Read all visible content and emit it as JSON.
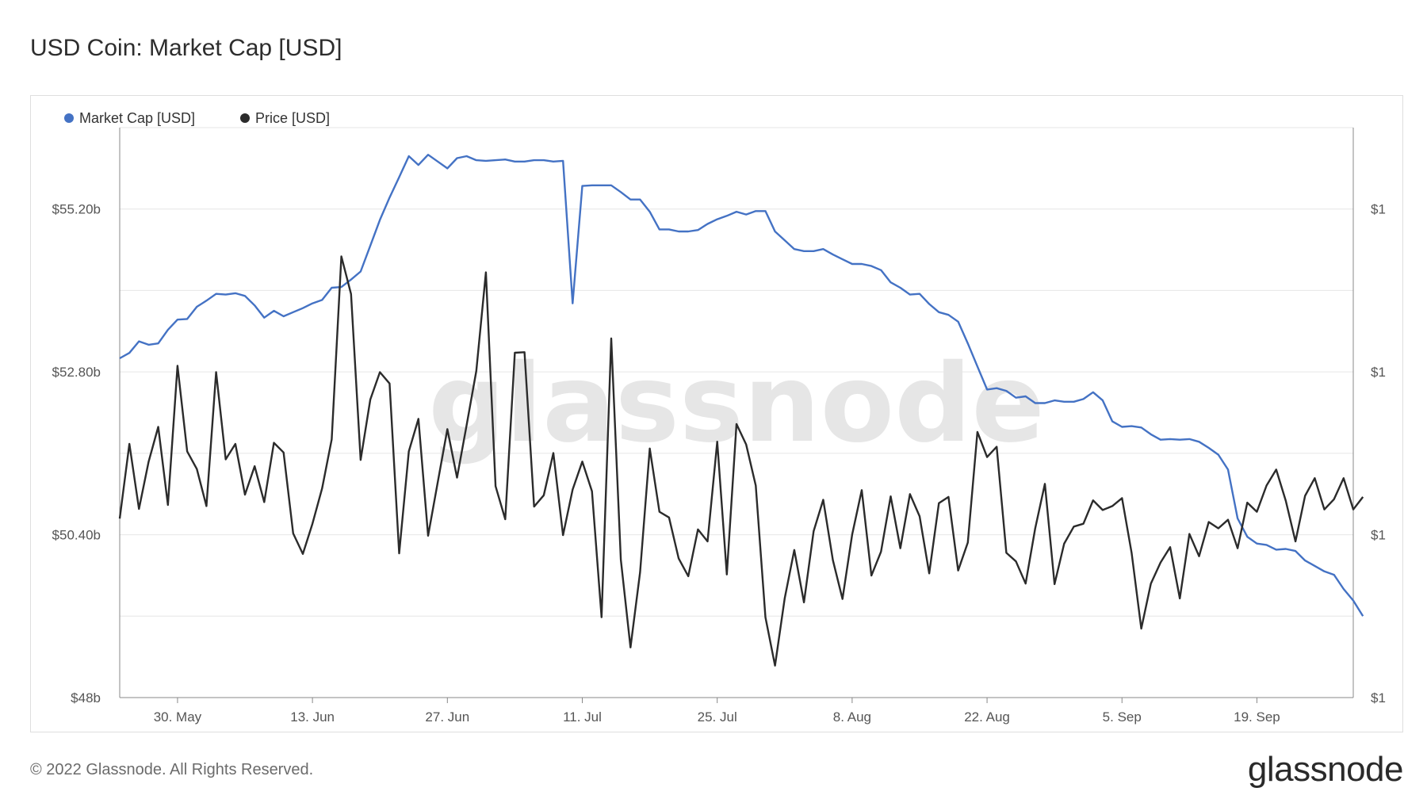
{
  "title": "USD Coin: Market Cap [USD]",
  "footer": {
    "copyright": "© 2022 Glassnode. All Rights Reserved.",
    "brand": "glassnode"
  },
  "watermark": "glassnode",
  "colors": {
    "market_cap": "#4472c4",
    "price": "#2b2b2b",
    "grid": "#e6e6e6",
    "axis": "#888888"
  },
  "chart_data": {
    "type": "line",
    "title": "USD Coin: Market Cap [USD]",
    "legend": {
      "placement": "top-left",
      "items": [
        "Market Cap [USD]",
        "Price [USD]"
      ]
    },
    "grid": true,
    "x_range": [
      "2022-05-24",
      "2022-09-29"
    ],
    "x_ticks": [
      {
        "date": "2022-05-30",
        "label": "30. May"
      },
      {
        "date": "2022-06-13",
        "label": "13. Jun"
      },
      {
        "date": "2022-06-27",
        "label": "27. Jun"
      },
      {
        "date": "2022-07-11",
        "label": "11. Jul"
      },
      {
        "date": "2022-07-25",
        "label": "25. Jul"
      },
      {
        "date": "2022-08-08",
        "label": "8. Aug"
      },
      {
        "date": "2022-08-22",
        "label": "22. Aug"
      },
      {
        "date": "2022-09-05",
        "label": "5. Sep"
      },
      {
        "date": "2022-09-19",
        "label": "19. Sep"
      }
    ],
    "y_left": {
      "range": [
        48.0,
        56.4
      ],
      "ticks": [
        {
          "value": 48.0,
          "label": "$48b"
        },
        {
          "value": 50.4,
          "label": "$50.40b"
        },
        {
          "value": 52.8,
          "label": "$52.80b"
        },
        {
          "value": 55.2,
          "label": "$55.20b"
        }
      ]
    },
    "y_right": {
      "range": [
        0,
        1
      ],
      "ticks": [
        {
          "value": 0.0,
          "label": "$1"
        },
        {
          "value": 0.2857,
          "label": "$1"
        },
        {
          "value": 0.5714,
          "label": "$1"
        },
        {
          "value": 0.8571,
          "label": "$1"
        }
      ]
    },
    "series": [
      {
        "name": "Market Cap [USD]",
        "axis": "left",
        "start": "2022-05-24",
        "values": [
          53.0,
          53.08,
          53.25,
          53.2,
          53.22,
          53.42,
          53.57,
          53.58,
          53.76,
          53.85,
          53.95,
          53.94,
          53.96,
          53.92,
          53.78,
          53.6,
          53.7,
          53.62,
          53.68,
          53.74,
          53.81,
          53.86,
          54.04,
          54.05,
          54.16,
          54.28,
          54.66,
          55.04,
          55.37,
          55.67,
          55.98,
          55.85,
          56.0,
          55.9,
          55.8,
          55.95,
          55.98,
          55.92,
          55.91,
          55.92,
          55.93,
          55.9,
          55.9,
          55.92,
          55.92,
          55.9,
          55.91,
          53.81,
          55.54,
          55.55,
          55.55,
          55.55,
          55.45,
          55.34,
          55.34,
          55.16,
          54.9,
          54.9,
          54.87,
          54.87,
          54.89,
          54.98,
          55.05,
          55.1,
          55.16,
          55.12,
          55.17,
          55.17,
          54.87,
          54.74,
          54.61,
          54.58,
          54.58,
          54.61,
          54.53,
          54.46,
          54.39,
          54.39,
          54.36,
          54.3,
          54.12,
          54.04,
          53.94,
          53.95,
          53.8,
          53.68,
          53.64,
          53.54,
          53.22,
          52.88,
          52.54,
          52.56,
          52.52,
          52.42,
          52.44,
          52.34,
          52.34,
          52.38,
          52.36,
          52.36,
          52.4,
          52.5,
          52.38,
          52.07,
          51.99,
          52.0,
          51.98,
          51.88,
          51.8,
          51.81,
          51.8,
          51.81,
          51.77,
          51.68,
          51.58,
          51.36,
          50.64,
          50.37,
          50.27,
          50.25,
          50.18,
          50.19,
          50.16,
          50.02,
          49.94,
          49.86,
          49.81,
          49.6,
          49.43,
          49.2
        ]
      },
      {
        "name": "Price [USD]",
        "axis": "right",
        "start": "2022-05-24",
        "values": [
          0.314,
          0.445,
          0.331,
          0.414,
          0.475,
          0.338,
          0.582,
          0.432,
          0.401,
          0.336,
          0.571,
          0.418,
          0.445,
          0.356,
          0.406,
          0.343,
          0.447,
          0.43,
          0.288,
          0.252,
          0.305,
          0.367,
          0.453,
          0.774,
          0.708,
          0.417,
          0.523,
          0.571,
          0.551,
          0.253,
          0.432,
          0.489,
          0.284,
          0.378,
          0.471,
          0.386,
          0.478,
          0.573,
          0.746,
          0.371,
          0.313,
          0.605,
          0.606,
          0.335,
          0.355,
          0.429,
          0.285,
          0.365,
          0.414,
          0.362,
          0.141,
          0.63,
          0.242,
          0.088,
          0.22,
          0.437,
          0.326,
          0.316,
          0.244,
          0.213,
          0.295,
          0.274,
          0.449,
          0.216,
          0.48,
          0.444,
          0.372,
          0.141,
          0.056,
          0.174,
          0.259,
          0.167,
          0.292,
          0.347,
          0.241,
          0.173,
          0.286,
          0.364,
          0.214,
          0.256,
          0.353,
          0.262,
          0.357,
          0.318,
          0.218,
          0.341,
          0.352,
          0.223,
          0.272,
          0.466,
          0.422,
          0.44,
          0.254,
          0.239,
          0.2,
          0.297,
          0.375,
          0.199,
          0.27,
          0.3,
          0.305,
          0.346,
          0.329,
          0.336,
          0.35,
          0.254,
          0.121,
          0.2,
          0.237,
          0.264,
          0.174,
          0.287,
          0.248,
          0.308,
          0.297,
          0.312,
          0.262,
          0.342,
          0.326,
          0.372,
          0.4,
          0.345,
          0.274,
          0.354,
          0.385,
          0.33,
          0.348,
          0.385,
          0.33,
          0.352
        ]
      }
    ]
  }
}
